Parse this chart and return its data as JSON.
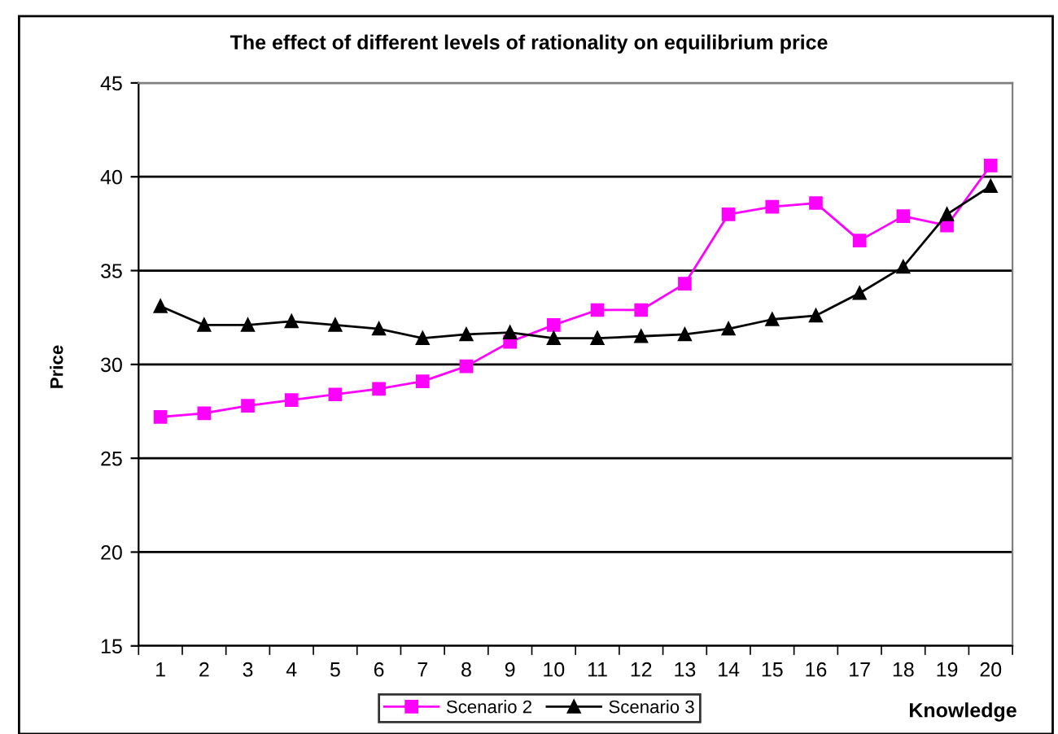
{
  "chart_data": {
    "type": "line",
    "title": "The effect of different levels of rationality on equilibrium price",
    "xlabel": "Knowledge",
    "ylabel": "Price",
    "categories": [
      "1",
      "2",
      "3",
      "4",
      "5",
      "6",
      "7",
      "8",
      "9",
      "10",
      "11",
      "12",
      "13",
      "14",
      "15",
      "16",
      "17",
      "18",
      "19",
      "20"
    ],
    "series": [
      {
        "name": "Scenario 2",
        "color": "#ff00ff",
        "marker": "square",
        "values": [
          27.2,
          27.4,
          27.8,
          28.1,
          28.4,
          28.7,
          29.1,
          29.9,
          31.2,
          32.1,
          32.9,
          32.9,
          34.3,
          38.0,
          38.4,
          38.6,
          36.6,
          37.9,
          37.4,
          40.6
        ]
      },
      {
        "name": "Scenario 3",
        "color": "#000000",
        "marker": "triangle",
        "values": [
          33.1,
          32.1,
          32.1,
          32.3,
          32.1,
          31.9,
          31.4,
          31.6,
          31.7,
          31.4,
          31.4,
          31.5,
          31.6,
          31.9,
          32.4,
          32.6,
          33.8,
          35.2,
          38.0,
          39.5
        ]
      }
    ],
    "ylim": [
      15,
      45
    ],
    "yticks": [
      15,
      20,
      25,
      30,
      35,
      40,
      45
    ],
    "grid": "y",
    "legend": "bottom",
    "line_style": "solid"
  }
}
